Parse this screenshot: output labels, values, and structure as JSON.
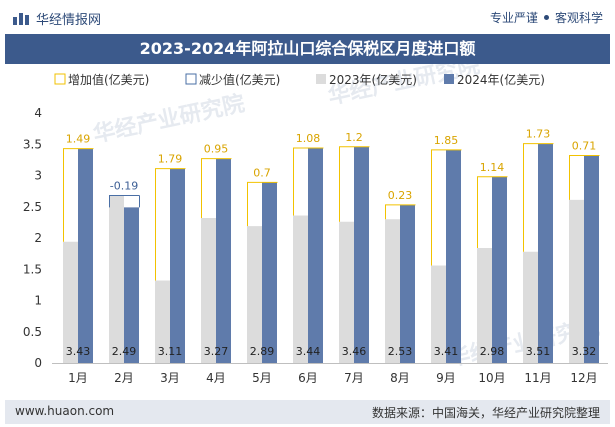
{
  "header": {
    "brand": "华经情报网",
    "tagline_left": "专业严谨",
    "tagline_right": "客观科学"
  },
  "footer": {
    "url": "www.huaon.com",
    "source": "数据来源：中国海关，华经产业研究院整理"
  },
  "watermark": "华经产业研究院",
  "colors": {
    "increase": "#f2c200",
    "decrease": "#4a6fa5",
    "y2023": "#dcdcdc",
    "y2024": "#5f7bab",
    "title_bg": "#3c5a8c"
  },
  "chart_data": {
    "type": "bar",
    "title": "2023-2024年阿拉山口综合保税区月度进口额",
    "categories": [
      "1月",
      "2月",
      "3月",
      "4月",
      "5月",
      "6月",
      "7月",
      "8月",
      "9月",
      "10月",
      "11月",
      "12月"
    ],
    "series": [
      {
        "name": "2023年(亿美元)",
        "values": [
          1.94,
          2.68,
          1.32,
          2.32,
          2.19,
          2.36,
          2.26,
          2.3,
          1.56,
          1.84,
          1.78,
          2.61
        ]
      },
      {
        "name": "2024年(亿美元)",
        "values": [
          3.43,
          2.49,
          3.11,
          3.27,
          2.89,
          3.44,
          3.46,
          2.53,
          3.41,
          2.98,
          3.51,
          3.32
        ]
      }
    ],
    "change": {
      "increase_name": "增加值(亿美元)",
      "decrease_name": "减少值(亿美元)",
      "values": [
        1.49,
        -0.19,
        1.79,
        0.95,
        0.7,
        1.08,
        1.2,
        0.23,
        1.85,
        1.14,
        1.73,
        0.71
      ],
      "labels": [
        "1.49",
        "-0.19",
        "1.79",
        "0.95",
        "0.7",
        "1.08",
        "1.2",
        "0.23",
        "1.85",
        "1.14",
        "1.73",
        "0.71"
      ]
    },
    "value_labels_2024": [
      "3.43",
      "2.49",
      "3.11",
      "3.27",
      "2.89",
      "3.44",
      "3.46",
      "2.53",
      "3.41",
      "2.98",
      "3.51",
      "3.32"
    ],
    "y_ticks": [
      0,
      0.5,
      1,
      1.5,
      2,
      2.5,
      3,
      3.5,
      4
    ],
    "y_tick_labels": [
      "0",
      "0.5",
      "1",
      "1.5",
      "2",
      "2.5",
      "3",
      "3.5",
      "4"
    ],
    "ylim": [
      0,
      4
    ],
    "legend_position": "top",
    "grid": false
  }
}
